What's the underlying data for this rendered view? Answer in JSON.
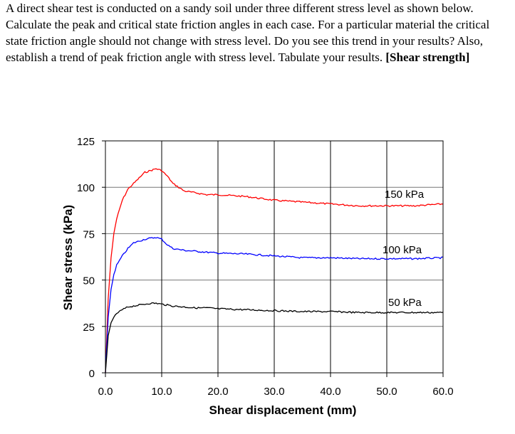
{
  "question": {
    "text": "A direct shear test is conducted on a sandy soil under three different stress level as shown below. Calculate the peak and critical state friction angles in each case. For a particular material the critical state friction angle should not change with stress level. Do you see this trend in your results? Also, establish a trend of peak friction angle with stress level. Tabulate your results.",
    "tag": "[Shear strength]"
  },
  "chart_data": {
    "type": "line",
    "title": "",
    "xlabel": "Shear displacement (mm)",
    "ylabel": "Shear stress (kPa)",
    "xlim": [
      0,
      60
    ],
    "ylim": [
      0,
      125
    ],
    "xticks": [
      "0.0",
      "10.0",
      "20.0",
      "30.0",
      "40.0",
      "50.0",
      "60.0"
    ],
    "yticks": [
      "0",
      "25",
      "50",
      "75",
      "100",
      "125"
    ],
    "grid": true,
    "series": [
      {
        "name": "150 kPa",
        "color": "#ff0000",
        "x": [
          0,
          0.5,
          1,
          1.5,
          2,
          3,
          4,
          5,
          6,
          7,
          8,
          9,
          10,
          11,
          12,
          13,
          14,
          16,
          18,
          20,
          25,
          30,
          35,
          40,
          45,
          50,
          55,
          60
        ],
        "y": [
          0,
          40,
          62,
          75,
          83,
          93,
          99,
          102,
          105,
          108,
          109,
          110,
          109,
          106,
          102,
          100,
          98,
          97,
          96,
          96,
          95,
          93,
          92,
          91,
          90,
          90,
          90,
          91
        ]
      },
      {
        "name": "100 kPa",
        "color": "#0000ff",
        "x": [
          0,
          0.5,
          1,
          1.5,
          2,
          3,
          4,
          5,
          6,
          7,
          8,
          9,
          10,
          11,
          12,
          14,
          16,
          18,
          20,
          25,
          30,
          35,
          40,
          45,
          50,
          55,
          60
        ],
        "y": [
          0,
          30,
          45,
          53,
          58,
          63,
          67,
          70,
          71,
          72,
          72.5,
          73,
          72,
          69,
          67,
          66,
          65.5,
          65,
          64.5,
          64,
          63,
          62,
          62,
          61.5,
          61.5,
          61.5,
          62
        ]
      },
      {
        "name": "50 kPa",
        "color": "#000000",
        "x": [
          0,
          0.5,
          1,
          1.5,
          2,
          3,
          4,
          5,
          6,
          7,
          8,
          9,
          10,
          12,
          14,
          16,
          18,
          20,
          25,
          30,
          35,
          40,
          45,
          50,
          55,
          60
        ],
        "y": [
          0,
          20,
          27,
          30,
          32,
          34,
          35.5,
          36,
          36.5,
          37,
          37.5,
          37.5,
          37,
          36,
          35.5,
          35,
          35,
          34.5,
          34,
          33.5,
          33,
          33,
          32.5,
          32.5,
          32.5,
          32.5
        ]
      }
    ]
  }
}
